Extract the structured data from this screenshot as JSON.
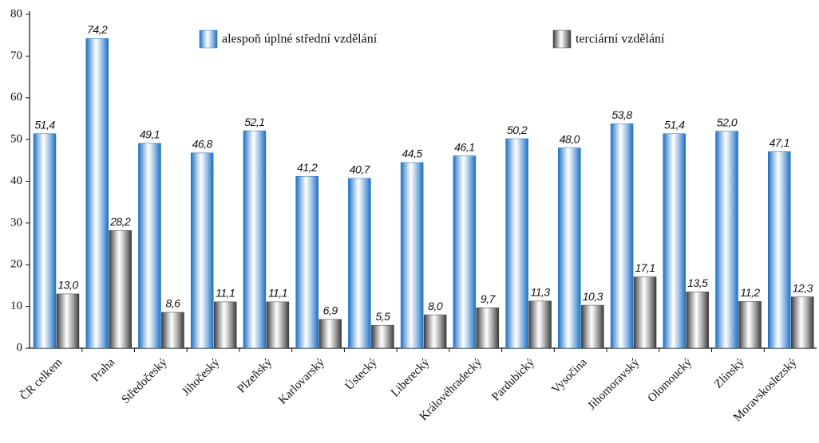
{
  "chart_data": {
    "type": "bar",
    "categories": [
      "ČR celkem",
      "Praha",
      "Středočeský",
      "Jihočeský",
      "Plzeňský",
      "Karlovarský",
      "Ústecký",
      "Liberecký",
      "Královéhradecký",
      "Pardubický",
      "Vysočina",
      "Jihomoravský",
      "Olomoucký",
      "Zlínský",
      "Moravskoslezský"
    ],
    "series": [
      {
        "name": "alespoň úplné střední vzdělání",
        "color": "#1a6fc4",
        "values": [
          51.4,
          74.2,
          49.1,
          46.8,
          52.1,
          41.2,
          40.7,
          44.5,
          46.1,
          50.2,
          48.0,
          53.8,
          51.4,
          52.0,
          47.1
        ],
        "value_labels": [
          "51,4",
          "74,2",
          "49,1",
          "46,8",
          "52,1",
          "41,2",
          "40,7",
          "44,5",
          "46,1",
          "50,2",
          "48,0",
          "53,8",
          "51,4",
          "52,0",
          "47,1"
        ]
      },
      {
        "name": "terciární vzdělání",
        "color": "#3a3a3a",
        "values": [
          13.0,
          28.2,
          8.6,
          11.1,
          11.1,
          6.9,
          5.5,
          8.0,
          9.7,
          11.3,
          10.3,
          17.1,
          13.5,
          11.2,
          12.3
        ],
        "value_labels": [
          "13,0",
          "28,2",
          "8,6",
          "11,1",
          "11,1",
          "6,9",
          "5,5",
          "8,0",
          "9,7",
          "11,3",
          "10,3",
          "17,1",
          "13,5",
          "11,2",
          "12,3"
        ]
      }
    ],
    "ylim": [
      0,
      80
    ],
    "yticks": [
      0,
      10,
      20,
      30,
      40,
      50,
      60,
      70,
      80
    ],
    "grid": false
  }
}
